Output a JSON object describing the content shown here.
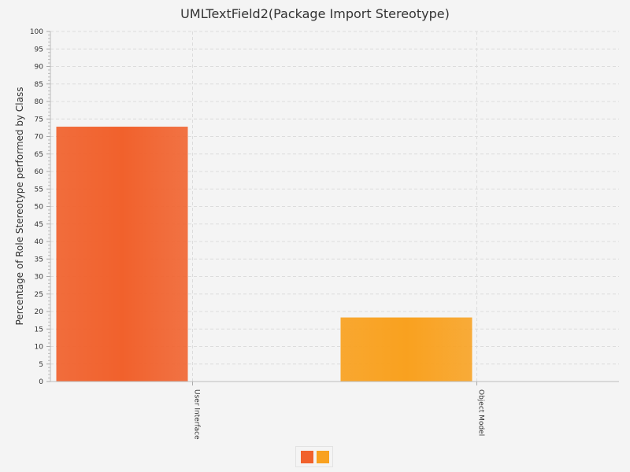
{
  "chart_data": {
    "type": "bar",
    "title": "UMLTextField2(Package Import Stereotype)",
    "ylabel": "Percentage of Role Stereotype performed by Class",
    "xlabel": "",
    "categories": [
      "User Interface",
      "Object Model"
    ],
    "values": [
      72.8,
      18.3
    ],
    "ylim": [
      0,
      100
    ],
    "ytick_step": 5,
    "grid": true,
    "legend_position": "bottom",
    "bar_colors": [
      "#f1612c",
      "#f9a11f"
    ]
  }
}
